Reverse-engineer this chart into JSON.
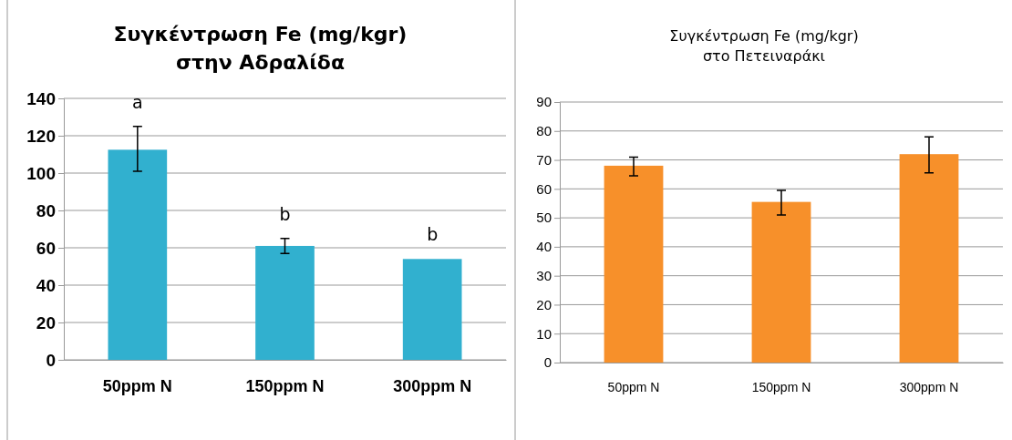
{
  "chart_data": [
    {
      "type": "bar",
      "title": "Συγκέντρωση Fe (mg/kgr)\nστην Αδραλίδα",
      "categories": [
        "50ppm N",
        "150ppm N",
        "300ppm N"
      ],
      "values": [
        112.5,
        61,
        54
      ],
      "errors": [
        [
          101,
          125
        ],
        [
          57,
          65
        ],
        null
      ],
      "color": "#31b0cf",
      "ylim": [
        0,
        140
      ],
      "yticks": [
        0,
        20,
        40,
        60,
        80,
        100,
        120,
        140
      ],
      "grid": "y",
      "value_labels": [
        "a",
        "b",
        "b"
      ]
    },
    {
      "type": "bar",
      "title": "Συγκέντρωση Fe (mg/kgr)\nστο Πετειναράκι",
      "categories": [
        "50ppm N",
        "150ppm N",
        "300ppm N"
      ],
      "values": [
        68,
        55.5,
        72
      ],
      "errors": [
        [
          64.5,
          71
        ],
        [
          51,
          59.5
        ],
        [
          65.5,
          78
        ]
      ],
      "color": "#f7902a",
      "ylim": [
        0,
        90
      ],
      "yticks": [
        0,
        10,
        20,
        30,
        40,
        50,
        60,
        70,
        80,
        90
      ],
      "grid": "y"
    }
  ]
}
